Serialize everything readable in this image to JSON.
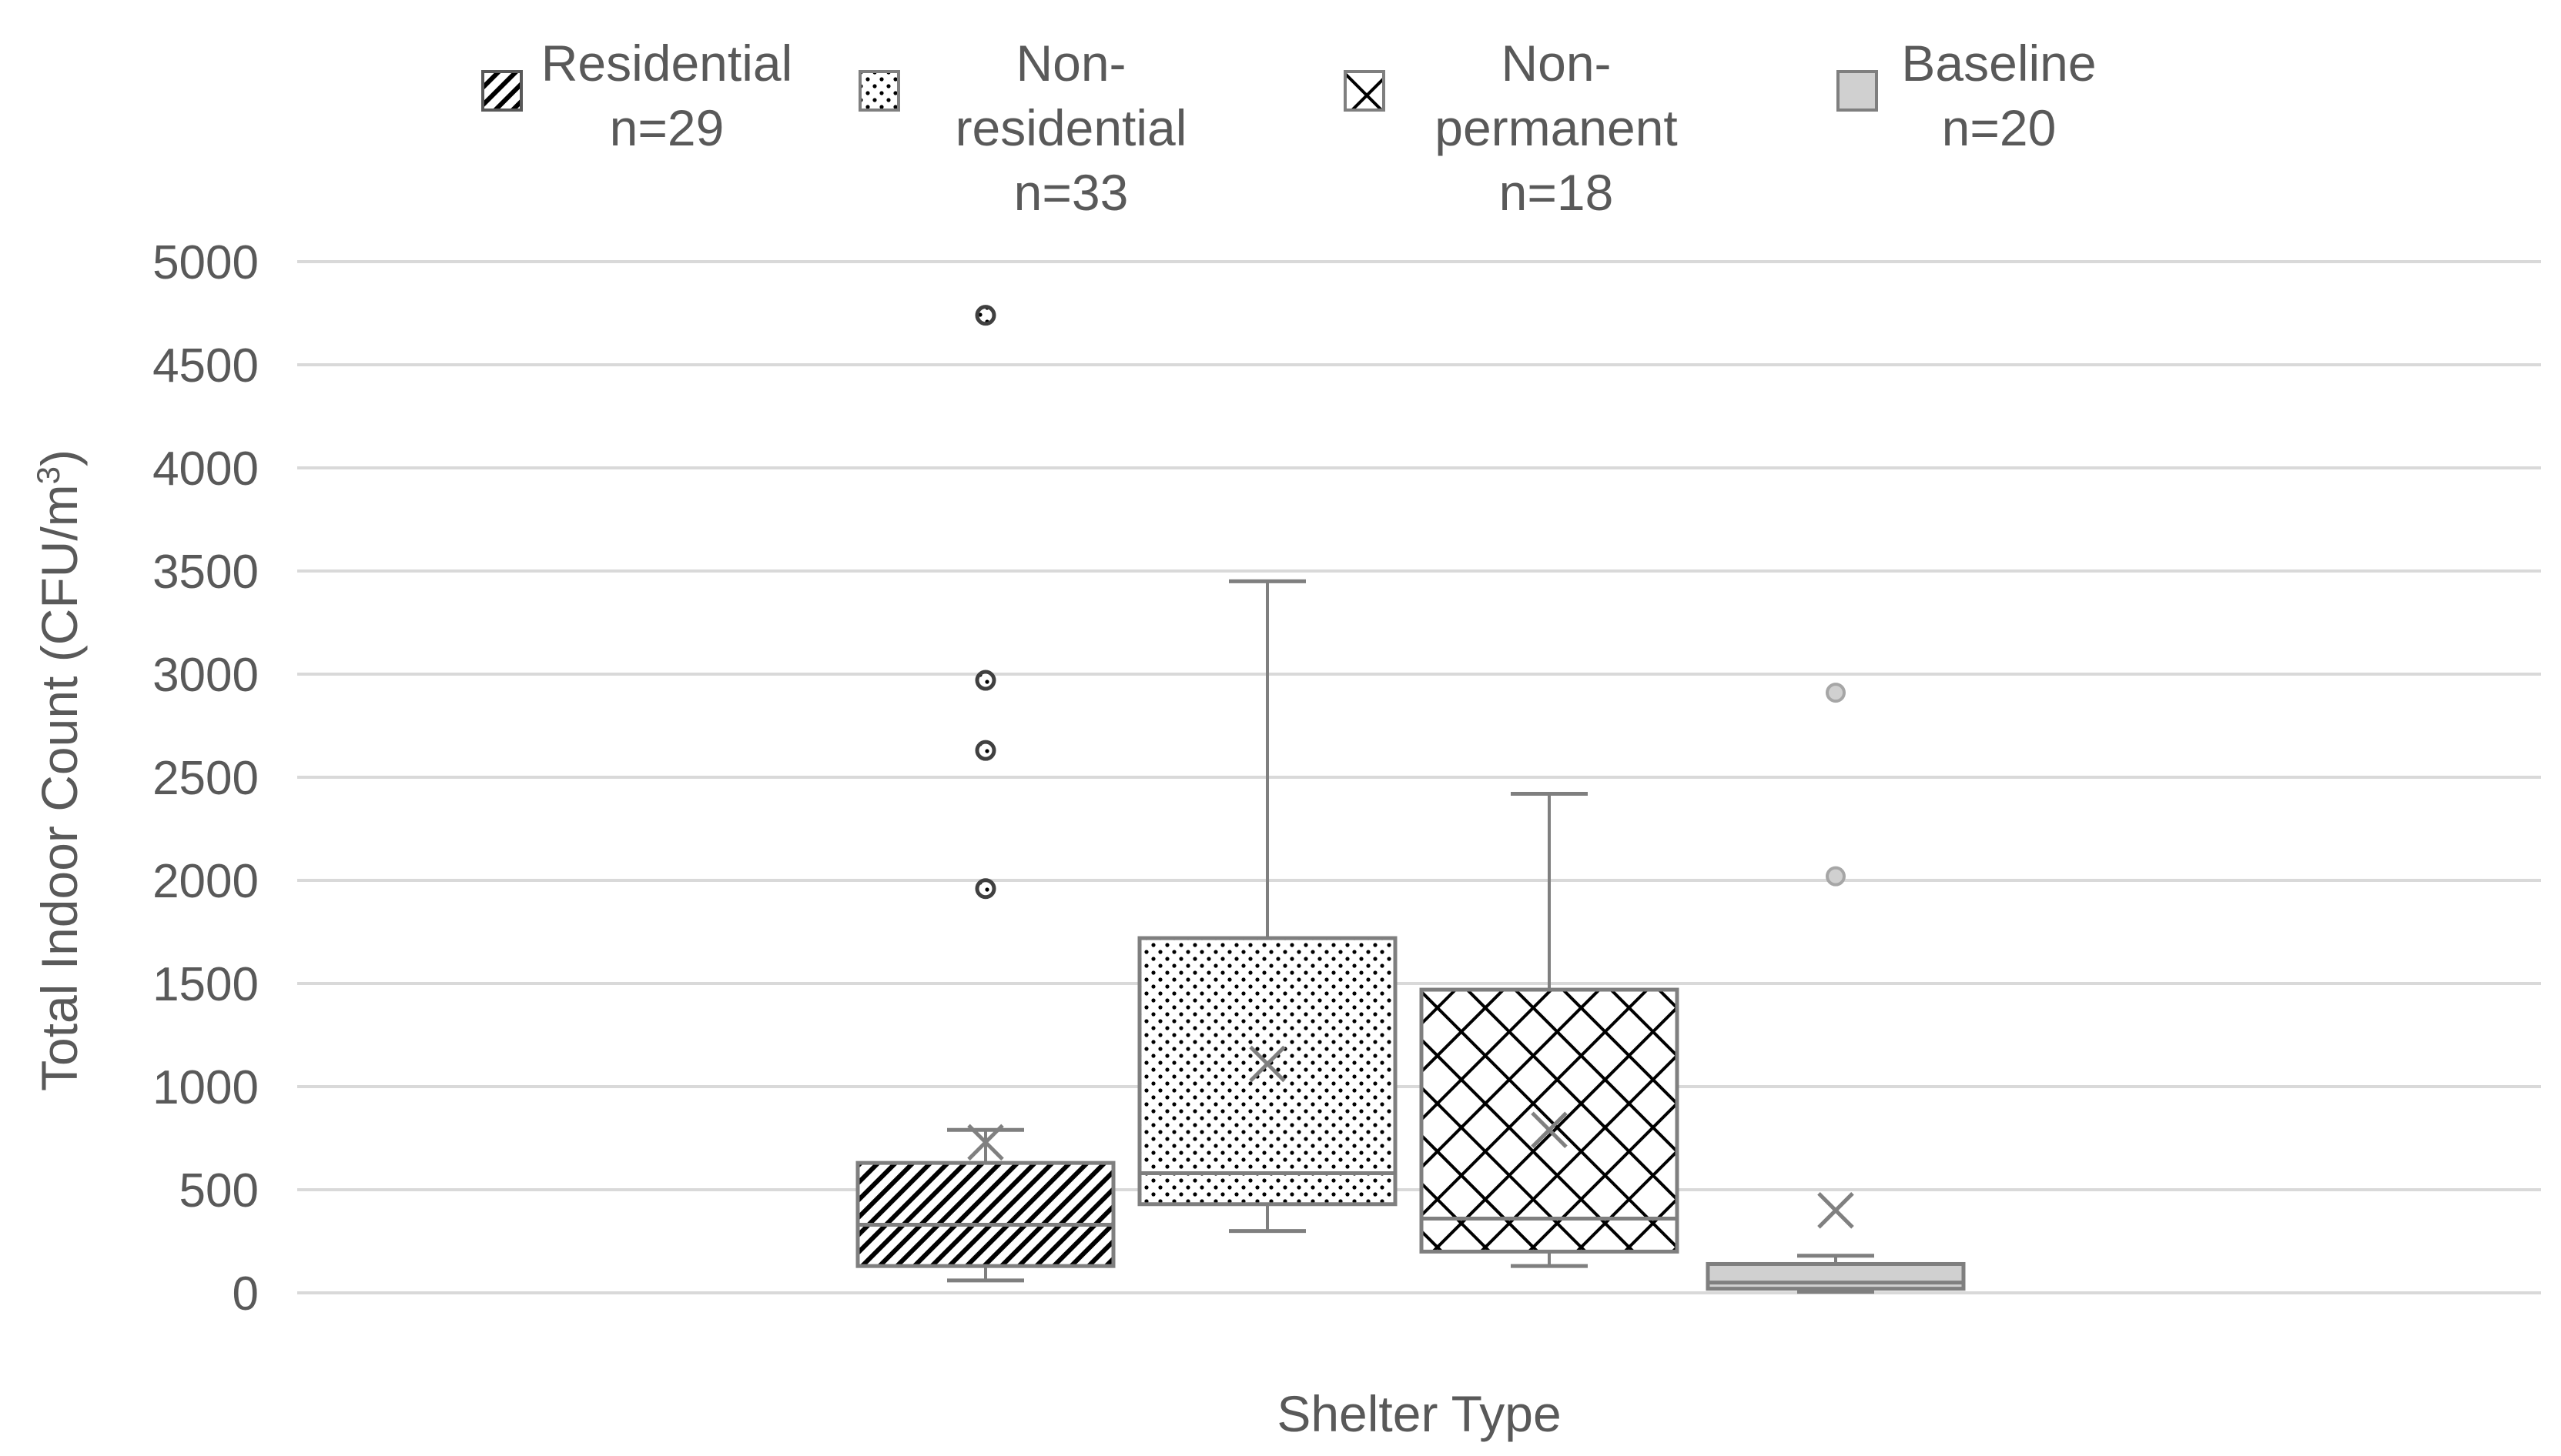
{
  "chart_data": {
    "type": "boxplot",
    "title": "",
    "xlabel": "Shelter Type",
    "ylabel": "Total Indoor Count (CFU/m³)",
    "ylabel_main": "Total Indoor Count (CFU/m",
    "ylabel_sup": "3",
    "ylabel_end": ")",
    "ylim": [
      0,
      5000
    ],
    "yticks": [
      0,
      500,
      1000,
      1500,
      2000,
      2500,
      3000,
      3500,
      4000,
      4500,
      5000
    ],
    "legend_position": "top",
    "series": [
      {
        "name": "Residential",
        "n_label": "n=29",
        "pattern": "diagonal",
        "min": 60,
        "q1": 130,
        "median": 330,
        "q3": 630,
        "max": 790,
        "mean": 730,
        "outliers": [
          1960,
          2630,
          2970,
          4740
        ]
      },
      {
        "name": "Non-residential",
        "n_label": "n=33",
        "pattern": "dots",
        "min": 300,
        "q1": 430,
        "median": 580,
        "q3": 1720,
        "max": 3450,
        "mean": 1110,
        "outliers": []
      },
      {
        "name": "Non-permanent",
        "n_label": "n=18",
        "pattern": "crosshatch",
        "min": 130,
        "q1": 200,
        "median": 360,
        "q3": 1470,
        "max": 2420,
        "mean": 790,
        "outliers": []
      },
      {
        "name": "Baseline",
        "n_label": "n=20",
        "pattern": "solid",
        "min": 5,
        "q1": 20,
        "median": 50,
        "q3": 140,
        "max": 180,
        "mean": 400,
        "outliers": [
          2020,
          2910
        ]
      }
    ]
  },
  "colors": {
    "axis_text": "#595959",
    "gridline": "#d9d9d9",
    "box_stroke": "#7f7f7f",
    "pattern_fill": "#000000",
    "baseline_fill": "#d0d0d0"
  }
}
